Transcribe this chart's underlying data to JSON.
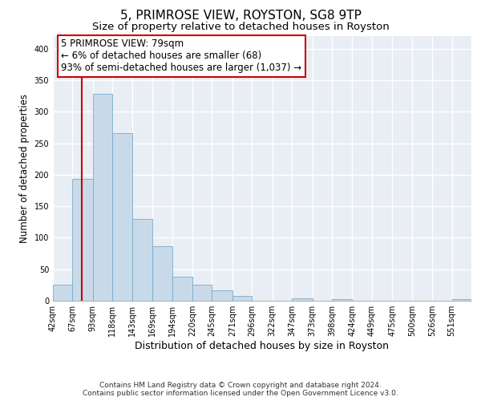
{
  "title": "5, PRIMROSE VIEW, ROYSTON, SG8 9TP",
  "subtitle": "Size of property relative to detached houses in Royston",
  "xlabel": "Distribution of detached houses by size in Royston",
  "ylabel": "Number of detached properties",
  "bin_labels": [
    "42sqm",
    "67sqm",
    "93sqm",
    "118sqm",
    "143sqm",
    "169sqm",
    "194sqm",
    "220sqm",
    "245sqm",
    "271sqm",
    "296sqm",
    "322sqm",
    "347sqm",
    "373sqm",
    "398sqm",
    "424sqm",
    "449sqm",
    "475sqm",
    "500sqm",
    "526sqm",
    "551sqm"
  ],
  "bin_edges": [
    42,
    67,
    93,
    118,
    143,
    169,
    194,
    220,
    245,
    271,
    296,
    322,
    347,
    373,
    398,
    424,
    449,
    475,
    500,
    526,
    551
  ],
  "bar_heights": [
    25,
    193,
    328,
    266,
    130,
    86,
    38,
    25,
    17,
    8,
    0,
    0,
    4,
    0,
    3,
    0,
    0,
    0,
    0,
    0,
    3
  ],
  "bar_color": "#c8daea",
  "bar_edge_color": "#7aaac8",
  "property_line_x": 79,
  "property_line_color": "#cc0000",
  "ylim": [
    0,
    420
  ],
  "yticks": [
    0,
    50,
    100,
    150,
    200,
    250,
    300,
    350,
    400
  ],
  "annotation_text": "5 PRIMROSE VIEW: 79sqm\n← 6% of detached houses are smaller (68)\n93% of semi-detached houses are larger (1,037) →",
  "annotation_box_color": "#ffffff",
  "annotation_box_edge": "#cc0000",
  "footer_line1": "Contains HM Land Registry data © Crown copyright and database right 2024.",
  "footer_line2": "Contains public sector information licensed under the Open Government Licence v3.0.",
  "background_color": "#ffffff",
  "plot_bg_color": "#e8eef4",
  "grid_color": "#ffffff",
  "title_fontsize": 11,
  "subtitle_fontsize": 9.5,
  "xlabel_fontsize": 9,
  "ylabel_fontsize": 8.5,
  "tick_fontsize": 7,
  "annotation_fontsize": 8.5,
  "footer_fontsize": 6.5
}
